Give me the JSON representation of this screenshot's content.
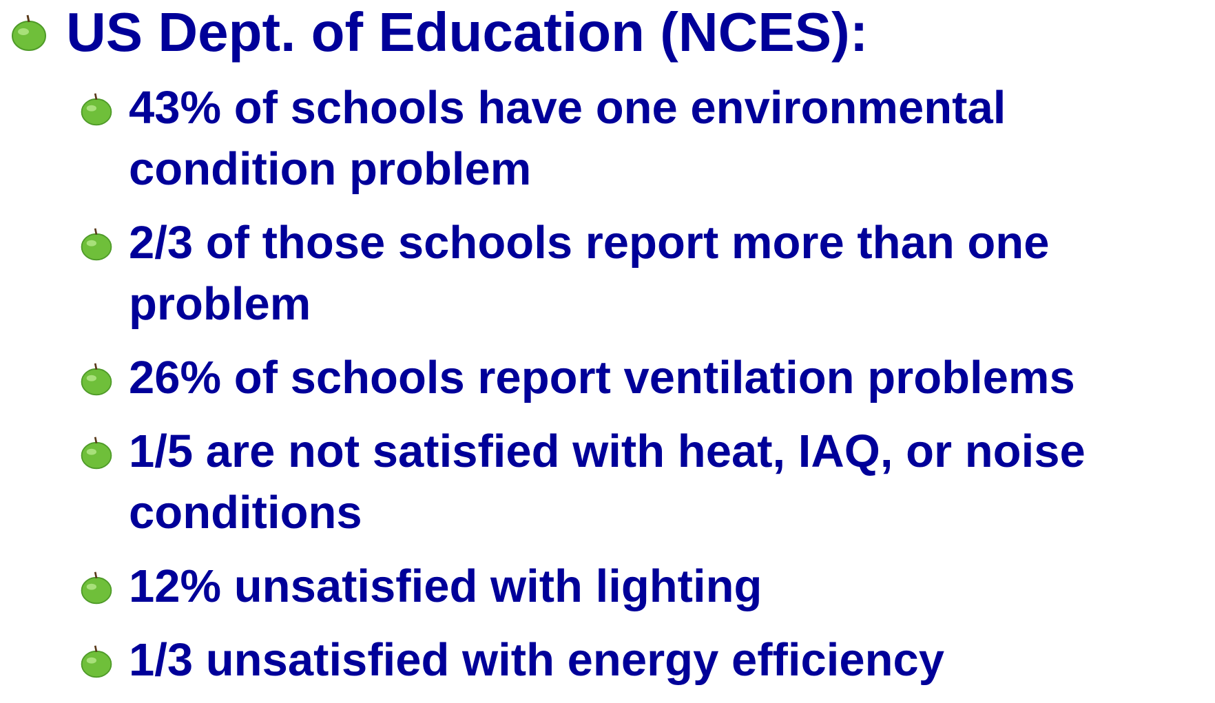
{
  "header": {
    "title": "US Dept. of Education (NCES):"
  },
  "bullets": [
    "43% of schools have one environmental condition problem",
    "2/3 of those schools report more than one problem",
    "26% of schools report ventilation problems",
    "1/5 are not satisfied with heat, IAQ, or noise conditions",
    "12% unsatisfied with lighting",
    "1/3 unsatisfied with energy efficiency"
  ]
}
